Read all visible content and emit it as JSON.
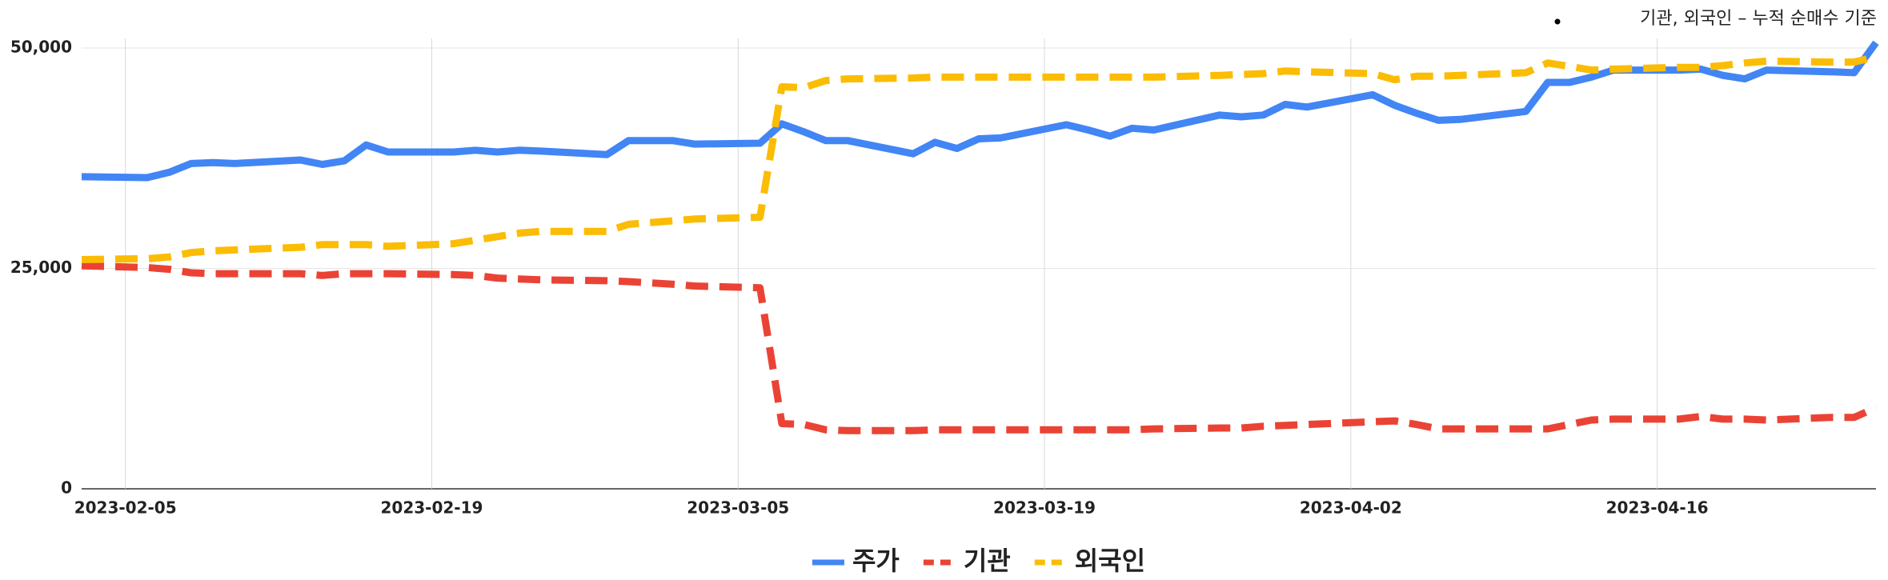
{
  "chart_data": {
    "type": "line",
    "annotation": "기관, 외국인 – 누적 순매수 기준",
    "x": [
      "2023-02-03",
      "2023-02-06",
      "2023-02-07",
      "2023-02-08",
      "2023-02-09",
      "2023-02-10",
      "2023-02-13",
      "2023-02-14",
      "2023-02-15",
      "2023-02-16",
      "2023-02-17",
      "2023-02-20",
      "2023-02-21",
      "2023-02-22",
      "2023-02-23",
      "2023-02-24",
      "2023-02-27",
      "2023-02-28",
      "2023-03-02",
      "2023-03-03",
      "2023-03-06",
      "2023-03-07",
      "2023-03-08",
      "2023-03-09",
      "2023-03-10",
      "2023-03-13",
      "2023-03-14",
      "2023-03-15",
      "2023-03-16",
      "2023-03-17",
      "2023-03-20",
      "2023-03-21",
      "2023-03-22",
      "2023-03-23",
      "2023-03-24",
      "2023-03-27",
      "2023-03-28",
      "2023-03-29",
      "2023-03-30",
      "2023-03-31",
      "2023-04-03",
      "2023-04-04",
      "2023-04-05",
      "2023-04-06",
      "2023-04-07",
      "2023-04-10",
      "2023-04-11",
      "2023-04-12",
      "2023-04-13",
      "2023-04-14",
      "2023-04-17",
      "2023-04-18",
      "2023-04-19",
      "2023-04-20",
      "2023-04-21",
      "2023-04-24",
      "2023-04-25",
      "2023-04-26"
    ],
    "series": [
      {
        "name": "주가",
        "color": "#4285f4",
        "dashed": false,
        "values": [
          35400,
          35300,
          35900,
          36900,
          37000,
          36900,
          37300,
          36800,
          37200,
          39000,
          38200,
          38200,
          38400,
          38200,
          38400,
          38300,
          37900,
          39500,
          39500,
          39100,
          39200,
          41400,
          40500,
          39500,
          39500,
          38000,
          39300,
          38600,
          39700,
          39800,
          41300,
          40700,
          40000,
          40900,
          40700,
          42400,
          42200,
          42400,
          43600,
          43300,
          44700,
          43500,
          42600,
          41800,
          41900,
          42800,
          46100,
          46100,
          46700,
          47500,
          47500,
          47600,
          46900,
          46500,
          47500,
          47300,
          47200,
          50600
        ]
      },
      {
        "name": "기관",
        "color": "#ea4335",
        "dashed": true,
        "values": [
          25300,
          25100,
          24900,
          24500,
          24400,
          24400,
          24400,
          24200,
          24400,
          24400,
          24400,
          24300,
          24200,
          23900,
          23800,
          23700,
          23600,
          23500,
          23200,
          23000,
          22800,
          7400,
          7300,
          6700,
          6600,
          6600,
          6700,
          6700,
          6700,
          6700,
          6700,
          6700,
          6700,
          6700,
          6800,
          6900,
          6900,
          7100,
          7200,
          7300,
          7600,
          7700,
          7300,
          6800,
          6800,
          6800,
          6800,
          7300,
          7800,
          7900,
          7900,
          8200,
          7900,
          7900,
          7800,
          8100,
          8100,
          9200
        ]
      },
      {
        "name": "외국인",
        "color": "#fbbc04",
        "dashed": true,
        "values": [
          26000,
          26100,
          26300,
          26800,
          27000,
          27100,
          27400,
          27700,
          27700,
          27700,
          27500,
          27800,
          28200,
          28600,
          29000,
          29200,
          29200,
          30000,
          30400,
          30600,
          30800,
          45600,
          45500,
          46300,
          46500,
          46600,
          46700,
          46700,
          46700,
          46700,
          46700,
          46700,
          46700,
          46700,
          46700,
          46900,
          47000,
          47100,
          47400,
          47300,
          47100,
          46400,
          46800,
          46800,
          46900,
          47200,
          48300,
          47900,
          47500,
          47600,
          47800,
          47800,
          48000,
          48300,
          48500,
          48400,
          48400,
          49000
        ]
      }
    ],
    "xlim": [
      "2023-02-03",
      "2023-04-26"
    ],
    "xticks": [
      "2023-02-05",
      "2023-02-19",
      "2023-03-05",
      "2023-03-19",
      "2023-04-02",
      "2023-04-16"
    ],
    "ylim": [
      0,
      50000
    ],
    "yticks": [
      0,
      {
        "value": 25000,
        "label": "25,000"
      },
      {
        "value": 50000,
        "label": "50,000"
      }
    ],
    "grid": true,
    "legend": "bottom"
  }
}
